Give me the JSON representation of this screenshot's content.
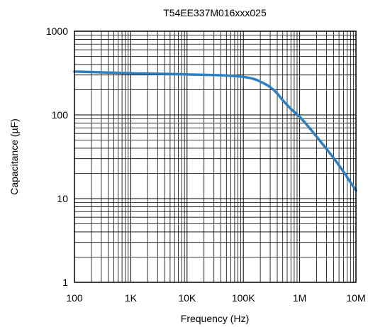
{
  "chart_data": {
    "type": "line",
    "title": "T54EE337M016xxx025",
    "xlabel": "Frequency (Hz)",
    "ylabel": "Capacitance (µF)",
    "x_scale": "log",
    "y_scale": "log",
    "xlim": [
      100,
      10000000
    ],
    "ylim": [
      1,
      1000
    ],
    "grid": true,
    "x_ticks": [
      {
        "value": 100,
        "label": "100"
      },
      {
        "value": 1000,
        "label": "1K"
      },
      {
        "value": 10000,
        "label": "10K"
      },
      {
        "value": 100000,
        "label": "100K"
      },
      {
        "value": 1000000,
        "label": "1M"
      },
      {
        "value": 10000000,
        "label": "10M"
      }
    ],
    "y_ticks": [
      {
        "value": 1,
        "label": "1"
      },
      {
        "value": 10,
        "label": "10"
      },
      {
        "value": 100,
        "label": "100"
      },
      {
        "value": 1000,
        "label": "1000"
      }
    ],
    "series": [
      {
        "color": "#2e7fc0",
        "x": [
          100,
          1000,
          10000,
          100000,
          150000,
          200000,
          300000,
          400000,
          500000,
          700000,
          1000000,
          2000000,
          5000000,
          10000000
        ],
        "y": [
          330,
          315,
          305,
          285,
          270,
          250,
          215,
          180,
          150,
          118,
          95,
          55,
          25,
          12.5
        ]
      }
    ]
  }
}
